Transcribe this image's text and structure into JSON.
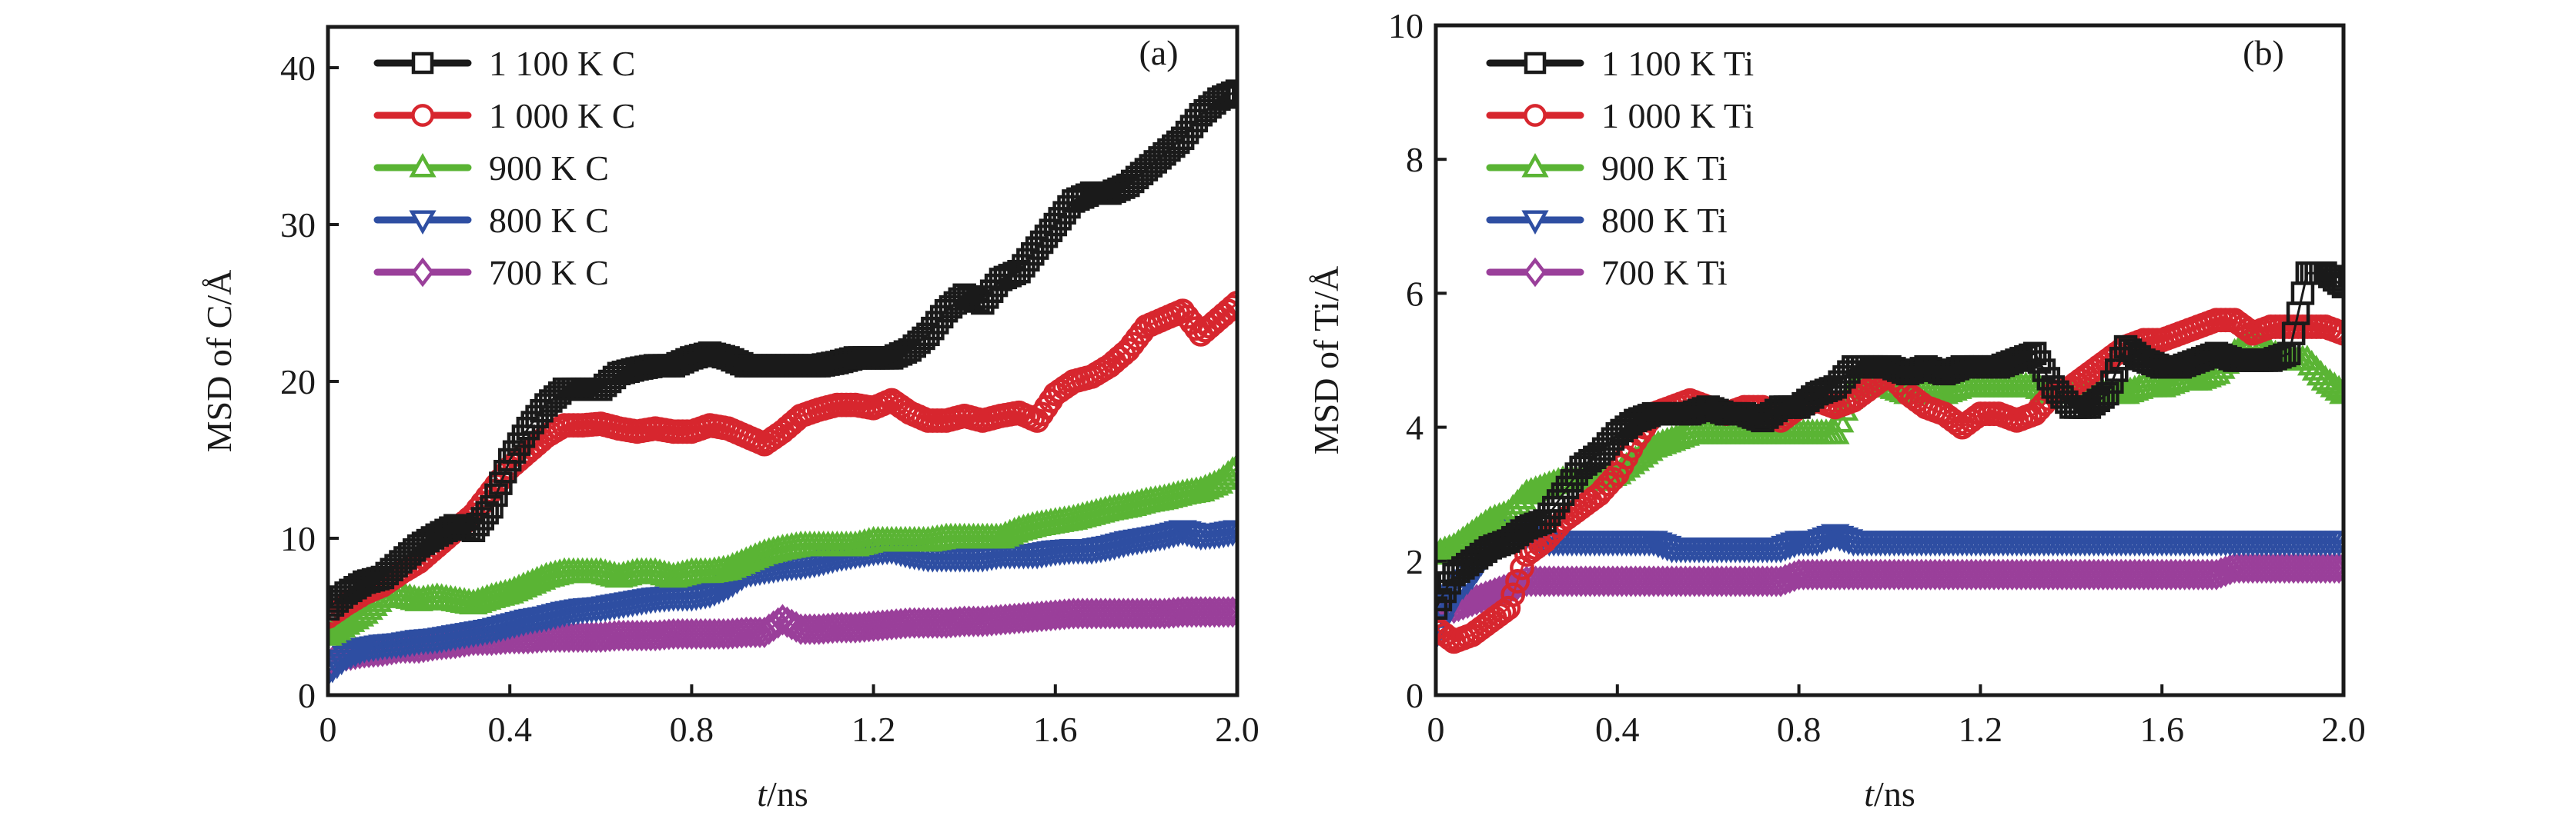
{
  "chart_data": [
    {
      "type": "scatter",
      "panel_tag": "(a)",
      "title": "",
      "xlabel_italic": "t",
      "xlabel_rest": "/ns",
      "ylabel": "MSD of C/Å",
      "xlim": [
        0,
        2.0
      ],
      "ylim": [
        0,
        42.6
      ],
      "xticks": [
        0,
        0.4,
        0.8,
        1.2,
        1.6,
        2.0
      ],
      "xtick_labels": [
        "0",
        "0.4",
        "0.8",
        "1.2",
        "1.6",
        "2.0"
      ],
      "yticks": [
        0,
        10,
        20,
        30,
        40
      ],
      "ytick_labels": [
        "0",
        "10",
        "20",
        "30",
        "40"
      ],
      "grid": false,
      "legend_position": "top-left",
      "x": [
        0,
        0.04,
        0.08,
        0.12,
        0.16,
        0.2,
        0.24,
        0.28,
        0.32,
        0.36,
        0.4,
        0.44,
        0.48,
        0.52,
        0.56,
        0.6,
        0.64,
        0.68,
        0.72,
        0.76,
        0.8,
        0.84,
        0.88,
        0.92,
        0.96,
        1.0,
        1.04,
        1.08,
        1.12,
        1.16,
        1.2,
        1.24,
        1.28,
        1.32,
        1.36,
        1.4,
        1.44,
        1.48,
        1.52,
        1.56,
        1.6,
        1.64,
        1.68,
        1.72,
        1.76,
        1.8,
        1.84,
        1.88,
        1.92,
        1.96,
        2.0
      ],
      "series": [
        {
          "name": "1 100 K C",
          "color": "#1a1a1a",
          "marker": "square",
          "values": [
            5.5,
            6.5,
            7.2,
            7.5,
            8.5,
            9.5,
            10.2,
            10.8,
            10.5,
            12,
            15,
            17,
            18.5,
            19.5,
            19.5,
            19.5,
            20.5,
            20.8,
            21,
            21,
            21.5,
            21.8,
            21.5,
            21,
            21,
            21,
            21,
            21,
            21.2,
            21.5,
            21.5,
            21.5,
            22,
            23,
            24.5,
            25.5,
            25,
            26.5,
            27,
            28.5,
            30,
            31.5,
            32,
            32,
            32.5,
            33.5,
            34.5,
            35.5,
            37,
            38,
            38.5
          ]
        },
        {
          "name": "1 000 K C",
          "color": "#d7262e",
          "marker": "circle",
          "values": [
            5,
            5.8,
            6.5,
            7,
            7.8,
            8.5,
            9.5,
            10.5,
            11.5,
            13,
            14.5,
            15.5,
            16.5,
            17.2,
            17.2,
            17.3,
            17,
            16.8,
            17,
            16.8,
            16.8,
            17.2,
            17,
            16.5,
            16,
            16.8,
            17.8,
            18.2,
            18.5,
            18.5,
            18.3,
            18.8,
            18,
            17.5,
            17.5,
            17.8,
            17.5,
            17.8,
            18,
            17.5,
            19.2,
            20,
            20.3,
            21,
            22,
            23.5,
            24,
            24.5,
            23,
            24,
            25
          ]
        },
        {
          "name": "900 K C",
          "color": "#5ab434",
          "marker": "triangle-up",
          "values": [
            3.8,
            4.5,
            5.2,
            6.2,
            6.3,
            6,
            6.2,
            6,
            5.8,
            6.2,
            6.5,
            7,
            7.5,
            7.8,
            7.8,
            7.8,
            7.5,
            7.8,
            7.8,
            7.5,
            7.8,
            7.8,
            8,
            8.5,
            9,
            9.3,
            9.5,
            9.5,
            9.5,
            9.5,
            9.8,
            9.8,
            9.8,
            9.8,
            10,
            10,
            10,
            10,
            10.5,
            10.8,
            11,
            11.2,
            11.5,
            11.8,
            12,
            12.3,
            12.5,
            12.8,
            13,
            13.5,
            14.5
          ]
        },
        {
          "name": "800 K C",
          "color": "#2e4ea2",
          "marker": "triangle-down",
          "values": [
            1.5,
            2.5,
            3,
            3.2,
            3.3,
            3.5,
            3.6,
            3.8,
            4,
            4.2,
            4.5,
            4.8,
            5,
            5.3,
            5.5,
            5.6,
            5.8,
            6,
            6.2,
            6.3,
            6.3,
            6.5,
            7,
            7.8,
            8,
            8.2,
            8.3,
            8.5,
            8.8,
            9,
            9.2,
            9.3,
            9,
            8.8,
            8.8,
            8.8,
            8.8,
            9,
            9,
            9,
            9.2,
            9.3,
            9.3,
            9.5,
            9.8,
            10,
            10.2,
            10.5,
            10.2,
            10.3,
            10.5
          ]
        },
        {
          "name": "700 K C",
          "color": "#9a3f9a",
          "marker": "diamond",
          "values": [
            2,
            2.5,
            2.7,
            2.8,
            3,
            3,
            3.2,
            3.3,
            3.5,
            3.5,
            3.6,
            3.6,
            3.7,
            3.7,
            3.7,
            3.7,
            3.8,
            3.8,
            3.8,
            3.9,
            3.9,
            3.9,
            3.9,
            4,
            4,
            4.8,
            4.2,
            4.2,
            4.3,
            4.3,
            4.4,
            4.5,
            4.6,
            4.6,
            4.6,
            4.7,
            4.7,
            4.8,
            4.9,
            5,
            5.1,
            5.2,
            5.2,
            5.2,
            5.2,
            5.2,
            5.2,
            5.3,
            5.3,
            5.3,
            5.3
          ]
        }
      ]
    },
    {
      "type": "scatter",
      "panel_tag": "(b)",
      "title": "",
      "xlabel_italic": "t",
      "xlabel_rest": "/ns",
      "ylabel": "MSD of Ti/Å",
      "xlim": [
        0,
        2.0
      ],
      "ylim": [
        0,
        10
      ],
      "xticks": [
        0,
        0.4,
        0.8,
        1.2,
        1.6,
        2.0
      ],
      "xtick_labels": [
        "0",
        "0.4",
        "0.8",
        "1.2",
        "1.6",
        "2.0"
      ],
      "yticks": [
        0,
        2,
        4,
        6,
        8,
        10
      ],
      "ytick_labels": [
        "0",
        "2",
        "4",
        "6",
        "8",
        "10"
      ],
      "grid": false,
      "legend_position": "top-left",
      "x": [
        0,
        0.04,
        0.08,
        0.12,
        0.16,
        0.2,
        0.24,
        0.28,
        0.32,
        0.36,
        0.4,
        0.44,
        0.48,
        0.52,
        0.56,
        0.6,
        0.64,
        0.68,
        0.72,
        0.76,
        0.8,
        0.84,
        0.88,
        0.92,
        0.96,
        1.0,
        1.04,
        1.08,
        1.12,
        1.16,
        1.2,
        1.24,
        1.28,
        1.32,
        1.36,
        1.4,
        1.44,
        1.48,
        1.52,
        1.56,
        1.6,
        1.64,
        1.68,
        1.72,
        1.76,
        1.8,
        1.84,
        1.88,
        1.92,
        1.96,
        2.0
      ],
      "series": [
        {
          "name": "1 100 K Ti",
          "color": "#1a1a1a",
          "marker": "square",
          "values": [
            1.3,
            1.8,
            2,
            2.2,
            2.3,
            2.5,
            2.6,
            3,
            3.4,
            3.6,
            3.9,
            4.1,
            4.2,
            4.2,
            4.2,
            4.3,
            4.2,
            4.2,
            4.1,
            4.3,
            4.3,
            4.5,
            4.6,
            4.9,
            4.9,
            4.9,
            4.8,
            4.9,
            4.8,
            4.9,
            4.9,
            4.9,
            5,
            5.1,
            4.6,
            4.3,
            4.3,
            4.5,
            5.2,
            5,
            4.9,
            4.9,
            5,
            5.1,
            5,
            5,
            5,
            5.1,
            6.3,
            6.3,
            6.1
          ]
        },
        {
          "name": "1 000 K Ti",
          "color": "#d7262e",
          "marker": "circle",
          "values": [
            1,
            0.8,
            0.9,
            1.1,
            1.3,
            2.1,
            2.3,
            2.6,
            2.8,
            3,
            3.3,
            3.8,
            4.2,
            4.3,
            4.4,
            4.3,
            4.2,
            4.3,
            4.3,
            4.1,
            4.3,
            4.4,
            4.3,
            4.4,
            4.6,
            4.8,
            4.5,
            4.3,
            4.2,
            4,
            4.2,
            4.2,
            4.1,
            4.2,
            4.5,
            4.6,
            4.8,
            5,
            5.2,
            5.3,
            5.3,
            5.4,
            5.5,
            5.6,
            5.6,
            5.4,
            5.5,
            5.5,
            5.5,
            5.5,
            5.4
          ]
        },
        {
          "name": "900 K Ti",
          "color": "#5ab434",
          "marker": "triangle-up",
          "values": [
            2.1,
            2.2,
            2.4,
            2.6,
            2.7,
            3,
            3.1,
            3.2,
            3.2,
            3.2,
            3.3,
            3.5,
            3.7,
            3.8,
            3.9,
            3.9,
            3.9,
            3.9,
            3.9,
            3.9,
            3.9,
            3.9,
            3.9,
            4.6,
            4.6,
            4.6,
            4.5,
            4.5,
            4.5,
            4.6,
            4.6,
            4.6,
            4.6,
            4.6,
            4.5,
            4.5,
            4.5,
            4.5,
            4.5,
            4.6,
            4.6,
            4.7,
            4.7,
            4.8,
            5.1,
            5.3,
            5.1,
            5,
            5,
            4.7,
            4.5
          ]
        },
        {
          "name": "800 K Ti",
          "color": "#2e4ea2",
          "marker": "triangle-down",
          "values": [
            0.9,
            1.5,
            1.8,
            2.2,
            2.5,
            2.4,
            2.3,
            2.3,
            2.3,
            2.3,
            2.3,
            2.3,
            2.3,
            2.2,
            2.2,
            2.2,
            2.2,
            2.2,
            2.2,
            2.2,
            2.3,
            2.3,
            2.4,
            2.3,
            2.3,
            2.3,
            2.3,
            2.3,
            2.3,
            2.3,
            2.3,
            2.3,
            2.3,
            2.3,
            2.3,
            2.3,
            2.3,
            2.3,
            2.3,
            2.3,
            2.3,
            2.3,
            2.3,
            2.3,
            2.3,
            2.3,
            2.3,
            2.3,
            2.3,
            2.3,
            2.3
          ]
        },
        {
          "name": "700 K Ti",
          "color": "#9a3f9a",
          "marker": "diamond",
          "values": [
            1.3,
            1.3,
            1.4,
            1.5,
            1.6,
            1.7,
            1.7,
            1.7,
            1.7,
            1.7,
            1.7,
            1.7,
            1.7,
            1.7,
            1.7,
            1.7,
            1.7,
            1.7,
            1.7,
            1.7,
            1.8,
            1.8,
            1.8,
            1.8,
            1.8,
            1.8,
            1.8,
            1.8,
            1.8,
            1.8,
            1.8,
            1.8,
            1.8,
            1.8,
            1.8,
            1.8,
            1.8,
            1.8,
            1.8,
            1.8,
            1.8,
            1.8,
            1.8,
            1.8,
            1.9,
            1.9,
            1.9,
            1.9,
            1.9,
            1.9,
            1.9
          ]
        }
      ]
    }
  ]
}
